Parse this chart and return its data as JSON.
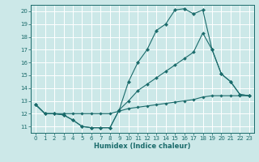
{
  "title": "",
  "xlabel": "Humidex (Indice chaleur)",
  "bg_color": "#cce8e8",
  "grid_color": "#ffffff",
  "line_color": "#1a6b6b",
  "xlim": [
    -0.5,
    23.5
  ],
  "ylim": [
    10.5,
    20.5
  ],
  "yticks": [
    11,
    12,
    13,
    14,
    15,
    16,
    17,
    18,
    19,
    20
  ],
  "xticks": [
    0,
    1,
    2,
    3,
    4,
    5,
    6,
    7,
    8,
    9,
    10,
    11,
    12,
    13,
    14,
    15,
    16,
    17,
    18,
    19,
    20,
    21,
    22,
    23
  ],
  "series": [
    {
      "x": [
        0,
        1,
        2,
        3,
        4,
        5,
        6,
        7,
        8,
        9,
        10,
        11,
        12,
        13,
        14,
        15,
        16,
        17,
        18,
        19,
        20,
        21,
        22,
        23
      ],
      "y": [
        12.7,
        12.0,
        12.0,
        11.9,
        11.5,
        11.0,
        10.9,
        10.9,
        10.9,
        12.3,
        14.5,
        16.0,
        17.0,
        18.5,
        19.0,
        20.1,
        20.2,
        19.8,
        20.1,
        17.0,
        15.1,
        14.5,
        13.5,
        13.4
      ],
      "marker": "D",
      "markersize": 2.2
    },
    {
      "x": [
        0,
        1,
        2,
        3,
        4,
        5,
        6,
        7,
        8,
        9,
        10,
        11,
        12,
        13,
        14,
        15,
        16,
        17,
        18,
        19,
        20,
        21,
        22,
        23
      ],
      "y": [
        12.7,
        12.0,
        12.0,
        11.9,
        11.5,
        11.0,
        10.9,
        10.9,
        10.9,
        12.3,
        13.0,
        13.8,
        14.3,
        14.8,
        15.3,
        15.8,
        16.3,
        16.8,
        18.3,
        17.0,
        15.1,
        14.5,
        13.5,
        13.4
      ],
      "marker": "D",
      "markersize": 2.0
    },
    {
      "x": [
        0,
        1,
        2,
        3,
        4,
        5,
        6,
        7,
        8,
        9,
        10,
        11,
        12,
        13,
        14,
        15,
        16,
        17,
        18,
        19,
        20,
        21,
        22,
        23
      ],
      "y": [
        12.7,
        12.0,
        12.0,
        12.0,
        12.0,
        12.0,
        12.0,
        12.0,
        12.0,
        12.2,
        12.4,
        12.5,
        12.6,
        12.7,
        12.8,
        12.9,
        13.0,
        13.1,
        13.3,
        13.4,
        13.4,
        13.4,
        13.4,
        13.4
      ],
      "marker": "D",
      "markersize": 1.8
    }
  ]
}
